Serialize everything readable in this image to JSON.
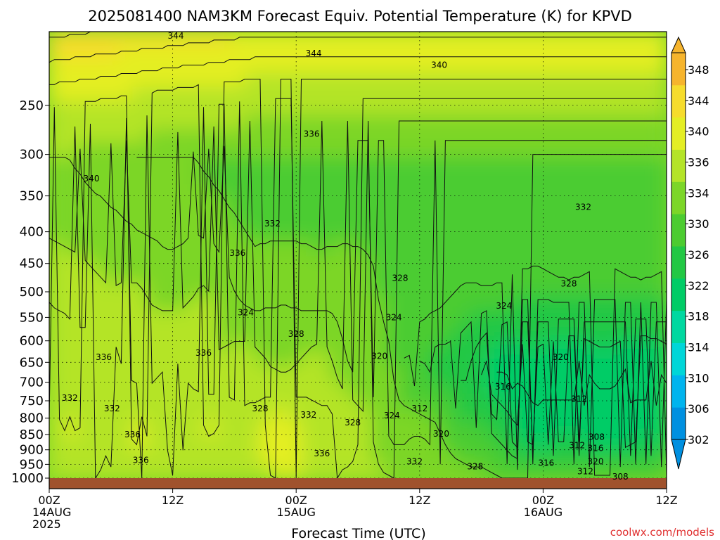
{
  "chart_data": {
    "type": "heatmap",
    "title": "2025081400 NAM3KM Forecast Equiv. Potential Temperature (K) for KPVD",
    "xlabel": "Forecast Time (UTC)",
    "ylabel": "",
    "credit": "coolwx.com/models",
    "x_range_hours": [
      0,
      60
    ],
    "x_ticks": [
      {
        "hour": 0,
        "lines": [
          "00Z",
          "14AUG",
          "2025"
        ]
      },
      {
        "hour": 12,
        "lines": [
          "12Z"
        ]
      },
      {
        "hour": 24,
        "lines": [
          "00Z",
          "15AUG"
        ]
      },
      {
        "hour": 36,
        "lines": [
          "12Z"
        ]
      },
      {
        "hour": 48,
        "lines": [
          "00Z",
          "16AUG"
        ]
      },
      {
        "hour": 60,
        "lines": [
          "12Z"
        ]
      }
    ],
    "y_axis": {
      "scale": "log",
      "reversed": true,
      "range_hpa": [
        1000,
        190
      ],
      "unit": "hPa"
    },
    "y_ticks": [
      250,
      300,
      350,
      400,
      450,
      500,
      550,
      600,
      650,
      700,
      750,
      800,
      850,
      900,
      950,
      1000
    ],
    "grid": true,
    "colorbar": {
      "min": 302,
      "max": 350,
      "step": 4,
      "labels": [
        "348",
        "344",
        "340",
        "336",
        "334",
        "330",
        "326",
        "322",
        "318",
        "314",
        "310",
        "306",
        "302"
      ],
      "bins": [
        {
          "min": 302,
          "max": 306,
          "color": "#0090e0"
        },
        {
          "min": 306,
          "max": 310,
          "color": "#00b4ee"
        },
        {
          "min": 310,
          "max": 314,
          "color": "#00d6d8"
        },
        {
          "min": 314,
          "max": 318,
          "color": "#00d8a0"
        },
        {
          "min": 318,
          "max": 322,
          "color": "#00cc66"
        },
        {
          "min": 322,
          "max": 326,
          "color": "#22c844"
        },
        {
          "min": 326,
          "max": 330,
          "color": "#4ccc30"
        },
        {
          "min": 330,
          "max": 334,
          "color": "#7cd628"
        },
        {
          "min": 334,
          "max": 338,
          "color": "#b4e428"
        },
        {
          "min": 338,
          "max": 342,
          "color": "#e4ee24"
        },
        {
          "min": 342,
          "max": 346,
          "color": "#f6dc2c"
        },
        {
          "min": 346,
          "max": 350,
          "color": "#f6b42c"
        }
      ]
    },
    "ground_color": "#a0522d",
    "contour_interval_K": 2,
    "contour_labels": [
      {
        "text": "344",
        "hour": 12.3,
        "p": 193
      },
      {
        "text": "344",
        "hour": 25.7,
        "p": 206
      },
      {
        "text": "340",
        "hour": 37.9,
        "p": 215
      },
      {
        "text": "336",
        "hour": 25.5,
        "p": 278
      },
      {
        "text": "340",
        "hour": 4.1,
        "p": 328
      },
      {
        "text": "332",
        "hour": 51.9,
        "p": 365
      },
      {
        "text": "332",
        "hour": 21.7,
        "p": 388
      },
      {
        "text": "336",
        "hour": 18.3,
        "p": 433
      },
      {
        "text": "328",
        "hour": 34.1,
        "p": 475
      },
      {
        "text": "328",
        "hour": 50.5,
        "p": 485
      },
      {
        "text": "324",
        "hour": 19.1,
        "p": 540
      },
      {
        "text": "324",
        "hour": 33.5,
        "p": 550
      },
      {
        "text": "324",
        "hour": 44.2,
        "p": 527
      },
      {
        "text": "328",
        "hour": 24.0,
        "p": 585
      },
      {
        "text": "336",
        "hour": 5.3,
        "p": 638
      },
      {
        "text": "336",
        "hour": 15.0,
        "p": 628
      },
      {
        "text": "320",
        "hour": 32.1,
        "p": 635
      },
      {
        "text": "320",
        "hour": 49.7,
        "p": 638
      },
      {
        "text": "316",
        "hour": 44.1,
        "p": 712
      },
      {
        "text": "332",
        "hour": 2.0,
        "p": 742
      },
      {
        "text": "332",
        "hour": 6.1,
        "p": 772
      },
      {
        "text": "312",
        "hour": 51.5,
        "p": 745
      },
      {
        "text": "328",
        "hour": 20.5,
        "p": 772
      },
      {
        "text": "312",
        "hour": 36.0,
        "p": 772
      },
      {
        "text": "332",
        "hour": 25.2,
        "p": 790
      },
      {
        "text": "324",
        "hour": 33.3,
        "p": 792
      },
      {
        "text": "328",
        "hour": 29.5,
        "p": 813
      },
      {
        "text": "336",
        "hour": 8.1,
        "p": 850
      },
      {
        "text": "320",
        "hour": 38.1,
        "p": 848
      },
      {
        "text": "308",
        "hour": 53.2,
        "p": 858
      },
      {
        "text": "312",
        "hour": 51.3,
        "p": 885
      },
      {
        "text": "316",
        "hour": 53.1,
        "p": 895
      },
      {
        "text": "336",
        "hour": 26.5,
        "p": 913
      },
      {
        "text": "336",
        "hour": 8.9,
        "p": 935
      },
      {
        "text": "332",
        "hour": 35.5,
        "p": 940
      },
      {
        "text": "320",
        "hour": 53.1,
        "p": 940
      },
      {
        "text": "316",
        "hour": 48.3,
        "p": 945
      },
      {
        "text": "328",
        "hour": 41.4,
        "p": 958
      },
      {
        "text": "312",
        "hour": 52.1,
        "p": 975
      },
      {
        "text": "308",
        "hour": 55.5,
        "p": 995
      }
    ]
  }
}
